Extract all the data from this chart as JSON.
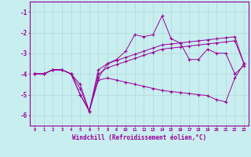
{
  "xlabel": "Windchill (Refroidissement éolien,°C)",
  "x": [
    0,
    1,
    2,
    3,
    4,
    5,
    6,
    7,
    8,
    9,
    10,
    11,
    12,
    13,
    14,
    15,
    16,
    17,
    18,
    19,
    20,
    21,
    22,
    23
  ],
  "series1": [
    -4.0,
    -4.0,
    -3.8,
    -3.8,
    -4.0,
    -5.0,
    -5.8,
    -4.2,
    -3.5,
    -3.3,
    -2.9,
    -2.1,
    -2.2,
    -2.1,
    -1.2,
    -2.3,
    -2.5,
    -3.3,
    -3.3,
    -2.8,
    -3.0,
    -3.0,
    -4.0,
    -3.6
  ],
  "series2": [
    -4.0,
    -4.0,
    -3.8,
    -3.8,
    -4.0,
    -4.5,
    -5.8,
    -3.8,
    -3.5,
    -3.35,
    -3.2,
    -3.05,
    -2.9,
    -2.75,
    -2.6,
    -2.55,
    -2.5,
    -2.45,
    -2.4,
    -2.35,
    -2.3,
    -2.25,
    -2.2,
    -3.5
  ],
  "series3": [
    -4.0,
    -4.0,
    -3.8,
    -3.8,
    -4.0,
    -4.7,
    -5.8,
    -4.0,
    -3.7,
    -3.55,
    -3.4,
    -3.25,
    -3.1,
    -2.95,
    -2.8,
    -2.75,
    -2.7,
    -2.65,
    -2.6,
    -2.55,
    -2.5,
    -2.45,
    -2.4,
    -3.5
  ],
  "series4": [
    -4.0,
    -4.0,
    -3.8,
    -3.8,
    -4.0,
    -5.0,
    -5.8,
    -4.3,
    -4.2,
    -4.3,
    -4.4,
    -4.5,
    -4.6,
    -4.7,
    -4.8,
    -4.85,
    -4.9,
    -4.95,
    -5.0,
    -5.05,
    -5.25,
    -5.35,
    -4.2,
    -3.5
  ],
  "line_color": "#990099",
  "bg_color": "#c8eef0",
  "grid_color": "#b0d8da",
  "ylim": [
    -6.5,
    -0.5
  ],
  "xlim": [
    -0.5,
    23.5
  ],
  "yticks": [
    -6,
    -5,
    -4,
    -3,
    -2,
    -1
  ],
  "xticks": [
    0,
    1,
    2,
    3,
    4,
    5,
    6,
    7,
    8,
    9,
    10,
    11,
    12,
    13,
    14,
    15,
    16,
    17,
    18,
    19,
    20,
    21,
    22,
    23
  ]
}
